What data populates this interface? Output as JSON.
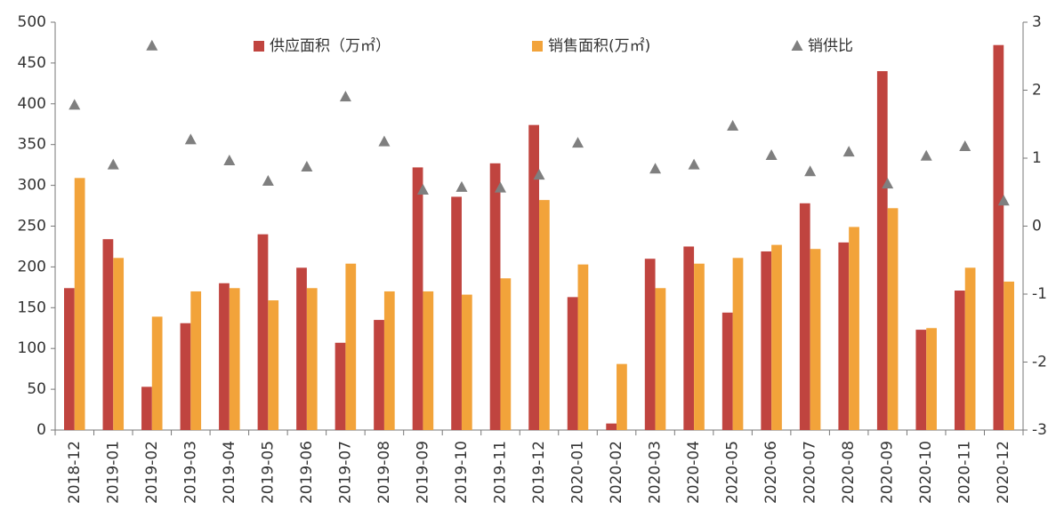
{
  "chart_data": {
    "type": "bar+scatter",
    "categories": [
      "2018-12",
      "2019-01",
      "2019-02",
      "2019-03",
      "2019-04",
      "2019-05",
      "2019-06",
      "2019-07",
      "2019-08",
      "2019-09",
      "2019-10",
      "2019-11",
      "2019-12",
      "2020-01",
      "2020-02",
      "2020-03",
      "2020-04",
      "2020-05",
      "2020-06",
      "2020-07",
      "2020-08",
      "2020-09",
      "2020-10",
      "2020-11",
      "2020-12"
    ],
    "series": [
      {
        "name": "供应面积（万㎡）",
        "color": "#c0443f",
        "type": "bar",
        "values": [
          174,
          234,
          53,
          131,
          180,
          240,
          199,
          107,
          135,
          322,
          286,
          327,
          374,
          163,
          8,
          210,
          225,
          144,
          219,
          278,
          230,
          440,
          123,
          171,
          472
        ]
      },
      {
        "name": "销售面积(万㎡)",
        "color": "#f2a33a",
        "type": "bar",
        "values": [
          309,
          211,
          139,
          170,
          174,
          159,
          174,
          204,
          170,
          170,
          166,
          186,
          282,
          203,
          81,
          174,
          204,
          211,
          227,
          222,
          249,
          272,
          125,
          199,
          182
        ]
      },
      {
        "name": "销供比",
        "color": "#7f7f7f",
        "type": "scatter",
        "axis": "y2",
        "values": [
          1.78,
          0.9,
          2.65,
          1.27,
          0.96,
          0.66,
          0.87,
          1.9,
          1.24,
          0.53,
          0.57,
          0.56,
          0.75,
          1.22,
          null,
          0.84,
          0.9,
          1.47,
          1.04,
          0.8,
          1.09,
          0.62,
          1.03,
          1.17,
          0.37
        ]
      }
    ],
    "ylim": [
      0,
      500
    ],
    "yticks": [
      0,
      50,
      100,
      150,
      200,
      250,
      300,
      350,
      400,
      450,
      500
    ],
    "y2lim": [
      -3,
      3
    ],
    "y2ticks": [
      -3,
      -2,
      -1,
      0,
      1,
      2,
      3
    ],
    "legend": "top"
  }
}
